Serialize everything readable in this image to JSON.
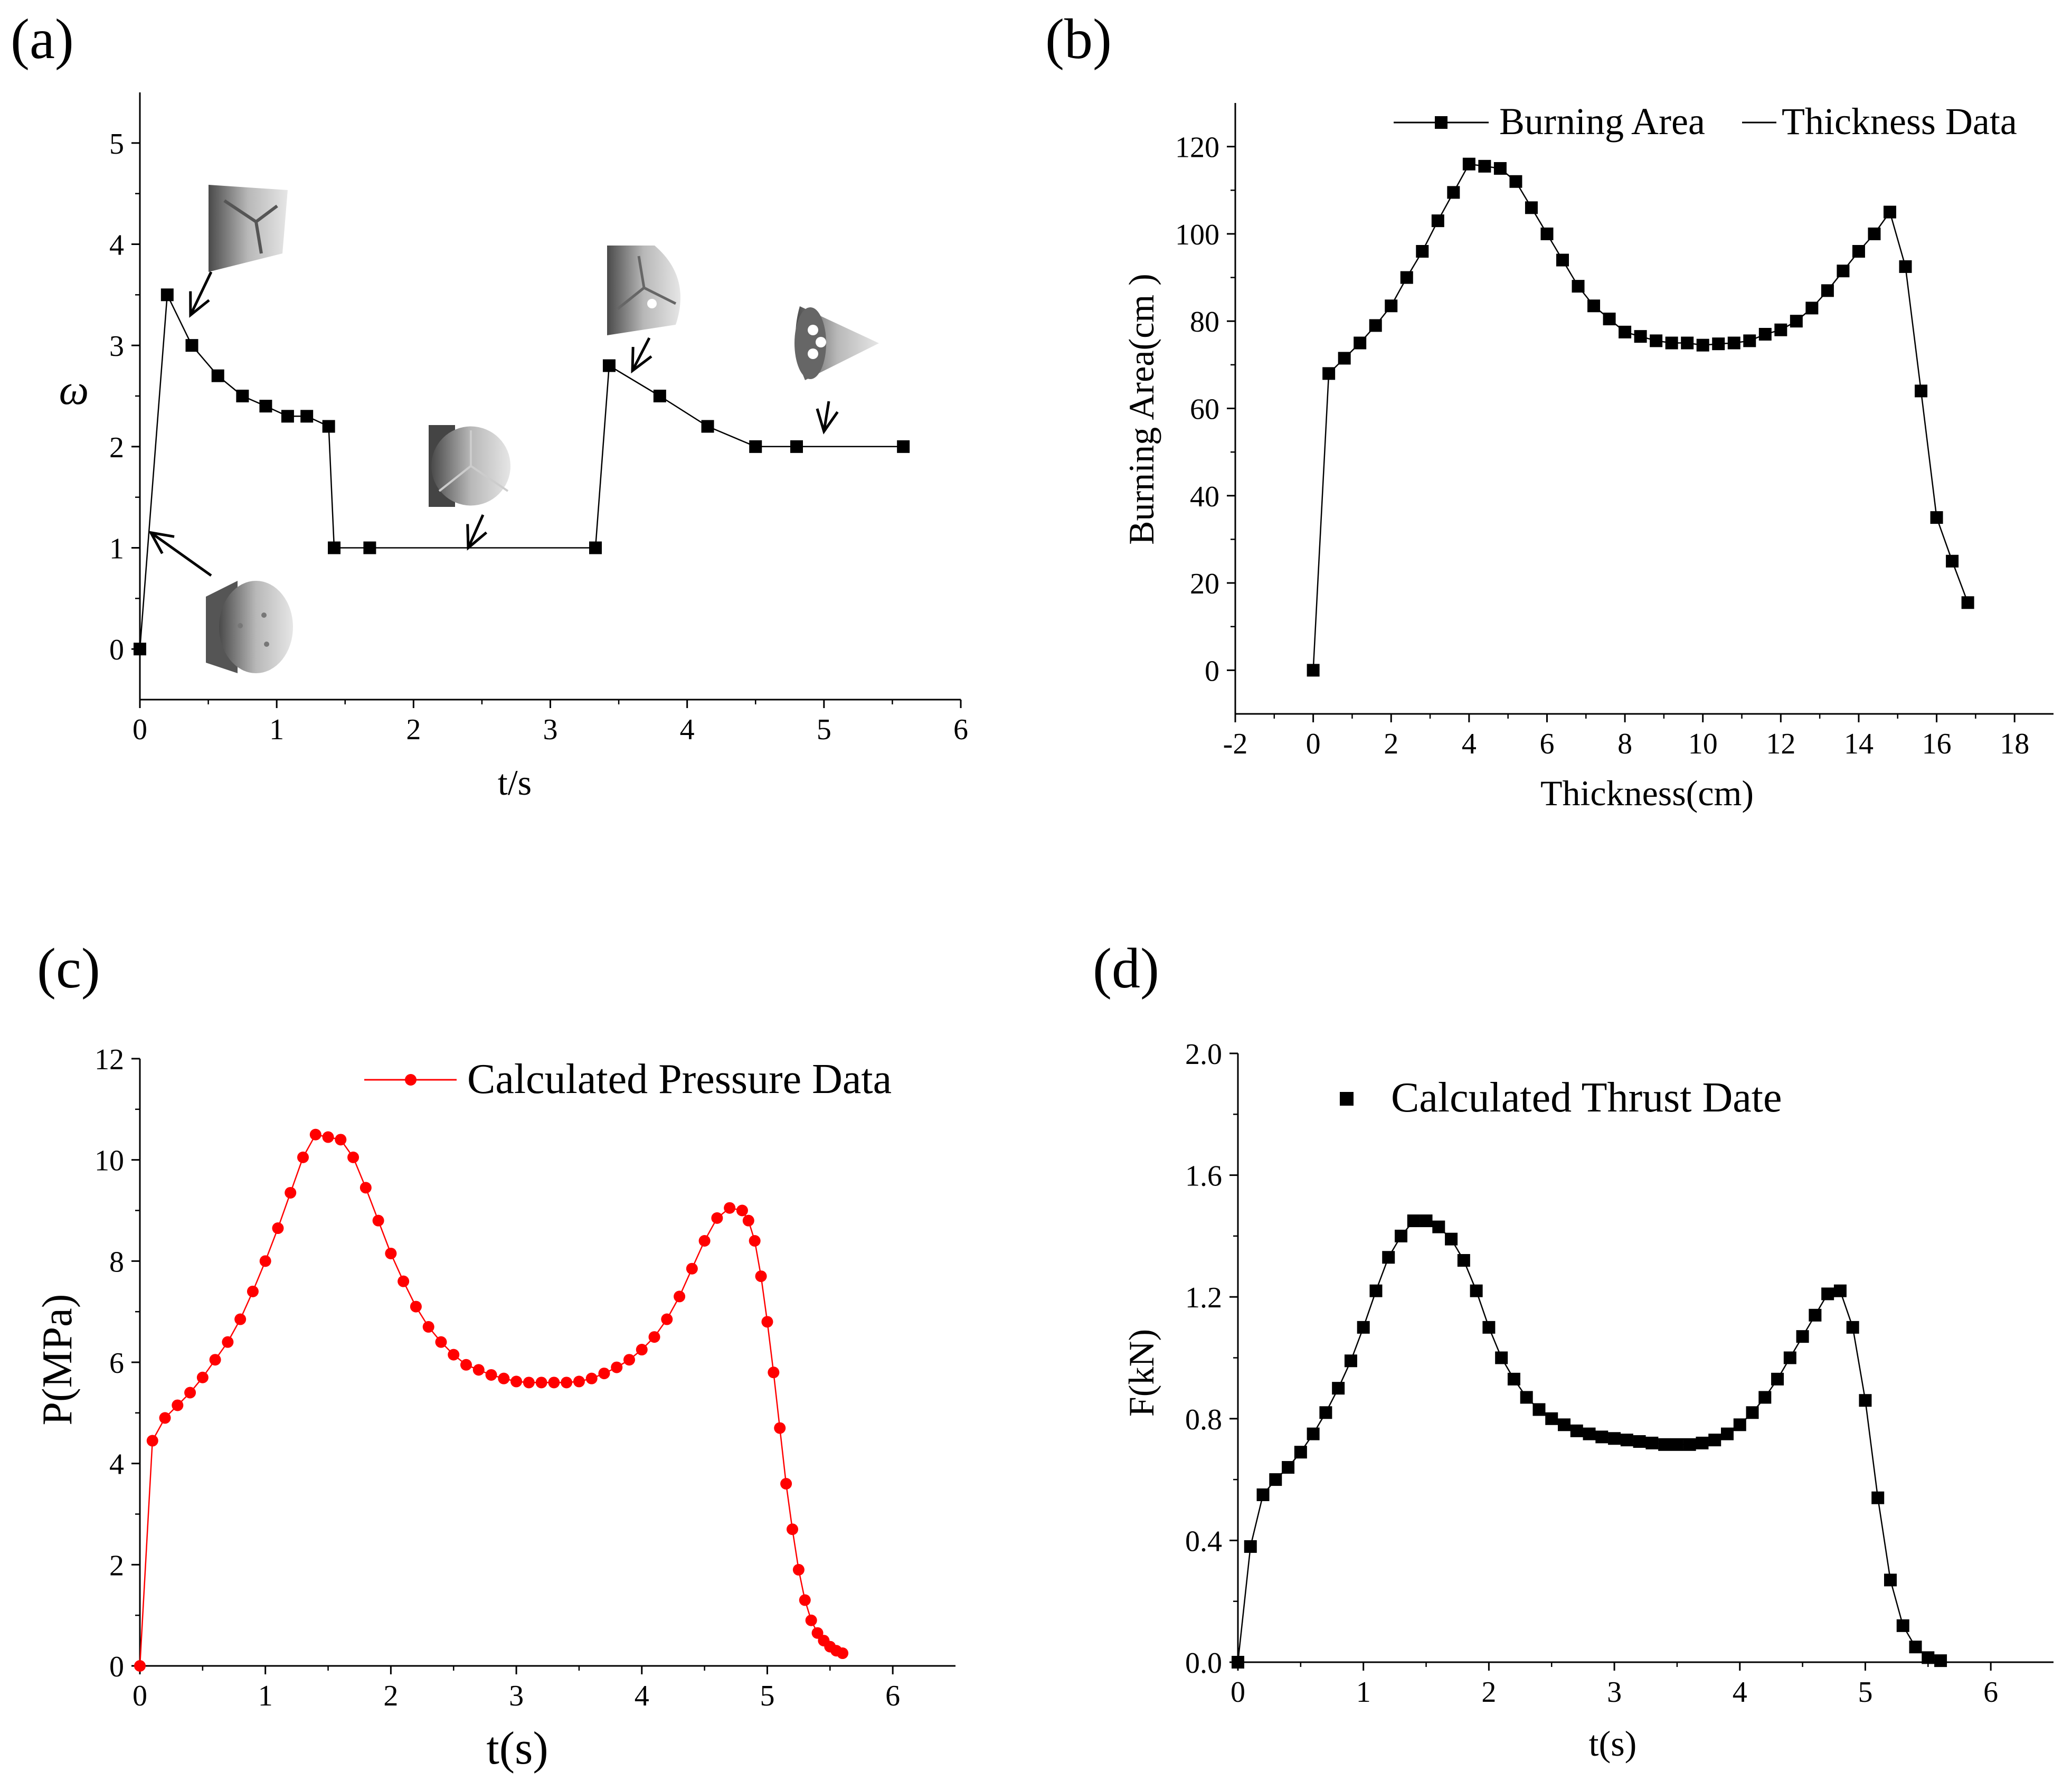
{
  "chart_data": [
    {
      "panel": "(a)",
      "type": "line",
      "xlabel": "t/s",
      "ylabel": "ω",
      "xlim": [
        0,
        6
      ],
      "ylim": [
        -0.5,
        5.5
      ],
      "xticks": [
        0,
        1,
        2,
        3,
        4,
        5,
        6
      ],
      "yticks": [
        0,
        1,
        2,
        3,
        4,
        5
      ],
      "marker": "square",
      "color": "#000000",
      "series": [
        {
          "name": "ω",
          "x": [
            0,
            0.2,
            0.38,
            0.57,
            0.75,
            0.92,
            1.08,
            1.22,
            1.38,
            1.42,
            1.68,
            3.33,
            3.43,
            3.8,
            4.15,
            4.5,
            4.8,
            5.58
          ],
          "y": [
            0,
            3.5,
            3.0,
            2.7,
            2.5,
            2.4,
            2.3,
            2.3,
            2.2,
            1.0,
            1.0,
            1.0,
            2.8,
            2.5,
            2.2,
            2.0,
            2.0,
            2.0
          ]
        }
      ],
      "annotations": [
        {
          "icon": "grain-shape-initial-icon",
          "target": [
            0.08,
            1.15
          ]
        },
        {
          "icon": "grain-shape-peak-icon",
          "target": [
            0.37,
            3.3
          ]
        },
        {
          "icon": "grain-shape-plateau-icon",
          "target": [
            2.4,
            1.0
          ]
        },
        {
          "icon": "grain-shape-second-peak-icon",
          "target": [
            3.6,
            2.75
          ]
        },
        {
          "icon": "grain-shape-final-icon",
          "target": [
            5.0,
            2.15
          ]
        }
      ]
    },
    {
      "panel": "(b)",
      "type": "line",
      "xlabel": "Thickness(cm)",
      "ylabel": "Burning Area(cm  )",
      "xlim": [
        -2,
        19
      ],
      "ylim": [
        -10,
        130
      ],
      "xticks": [
        -2,
        0,
        2,
        4,
        6,
        8,
        10,
        12,
        14,
        16,
        18
      ],
      "yticks": [
        0,
        20,
        40,
        60,
        80,
        100,
        120
      ],
      "marker": "square",
      "color": "#000000",
      "legend": {
        "entries": [
          "Burning Area",
          "Thickness Data"
        ],
        "position": "top-right"
      },
      "series": [
        {
          "name": "Burning Area",
          "x": [
            0,
            0.4,
            0.8,
            1.2,
            1.6,
            2.0,
            2.4,
            2.8,
            3.2,
            3.6,
            4.0,
            4.4,
            4.8,
            5.2,
            5.6,
            6.0,
            6.4,
            6.8,
            7.2,
            7.6,
            8.0,
            8.4,
            8.8,
            9.2,
            9.6,
            10.0,
            10.4,
            10.8,
            11.2,
            11.6,
            12.0,
            12.4,
            12.8,
            13.2,
            13.6,
            14.0,
            14.4,
            14.8,
            15.2,
            15.6,
            16.0,
            16.4,
            16.8
          ],
          "y": [
            0,
            68,
            71.5,
            75,
            79,
            83.5,
            90,
            96,
            103,
            109.5,
            116,
            115.5,
            115,
            112,
            106,
            100,
            94,
            88,
            83.5,
            80.5,
            77.5,
            76.5,
            75.5,
            75,
            75,
            74.5,
            74.8,
            75,
            75.5,
            77,
            78,
            80,
            83,
            87,
            91.5,
            96,
            100,
            105,
            92.5,
            64,
            35,
            25,
            15.5
          ]
        }
      ]
    },
    {
      "panel": "(c)",
      "type": "line",
      "xlabel": "t(s)",
      "ylabel": "P(MPa)",
      "xlim": [
        0,
        6.5
      ],
      "ylim": [
        0,
        12
      ],
      "xticks": [
        0,
        1,
        2,
        3,
        4,
        5,
        6
      ],
      "yticks": [
        0,
        2,
        4,
        6,
        8,
        10,
        12
      ],
      "marker": "circle",
      "color": "#ff0000",
      "legend": {
        "entries": [
          "Calculated Pressure Data"
        ],
        "position": "top-right"
      },
      "series": [
        {
          "name": "Calculated Pressure Data",
          "x": [
            0,
            0.1,
            0.2,
            0.3,
            0.4,
            0.5,
            0.6,
            0.7,
            0.8,
            0.9,
            1.0,
            1.1,
            1.2,
            1.3,
            1.4,
            1.5,
            1.6,
            1.7,
            1.8,
            1.9,
            2.0,
            2.1,
            2.2,
            2.3,
            2.4,
            2.5,
            2.6,
            2.7,
            2.8,
            2.9,
            3.0,
            3.1,
            3.2,
            3.3,
            3.4,
            3.5,
            3.6,
            3.7,
            3.8,
            3.9,
            4.0,
            4.1,
            4.2,
            4.3,
            4.4,
            4.5,
            4.6,
            4.7,
            4.8,
            4.85,
            4.9,
            4.95,
            5.0,
            5.05,
            5.1,
            5.15,
            5.2,
            5.25,
            5.3,
            5.35,
            5.4,
            5.45,
            5.5,
            5.55,
            5.6
          ],
          "y": [
            0,
            4.45,
            4.9,
            5.15,
            5.4,
            5.7,
            6.05,
            6.4,
            6.85,
            7.4,
            8.0,
            8.65,
            9.35,
            10.05,
            10.5,
            10.45,
            10.4,
            10.05,
            9.45,
            8.8,
            8.15,
            7.6,
            7.1,
            6.7,
            6.4,
            6.15,
            5.95,
            5.85,
            5.75,
            5.68,
            5.62,
            5.6,
            5.6,
            5.6,
            5.6,
            5.62,
            5.68,
            5.78,
            5.9,
            6.05,
            6.25,
            6.5,
            6.85,
            7.3,
            7.85,
            8.4,
            8.85,
            9.05,
            9.0,
            8.8,
            8.4,
            7.7,
            6.8,
            5.8,
            4.7,
            3.6,
            2.7,
            1.9,
            1.3,
            0.9,
            0.65,
            0.5,
            0.38,
            0.3,
            0.25
          ]
        }
      ]
    },
    {
      "panel": "(d)",
      "type": "line",
      "xlabel": "t(s)",
      "ylabel": "F(kN)",
      "xlim": [
        0,
        6.5
      ],
      "ylim": [
        0,
        2.0
      ],
      "xticks": [
        0,
        1,
        2,
        3,
        4,
        5,
        6
      ],
      "yticks": [
        0.0,
        0.4,
        0.8,
        1.2,
        1.6,
        2.0
      ],
      "ytick_labels": [
        "0.0",
        "0.4",
        "0.8",
        "1.2",
        "1.6",
        "2.0"
      ],
      "marker": "square",
      "color": "#000000",
      "legend": {
        "entries": [
          "Calculated Thrust Date"
        ],
        "position": "top-center"
      },
      "series": [
        {
          "name": "Calculated Thrust Date",
          "x": [
            0,
            0.1,
            0.2,
            0.3,
            0.4,
            0.5,
            0.6,
            0.7,
            0.8,
            0.9,
            1.0,
            1.1,
            1.2,
            1.3,
            1.4,
            1.5,
            1.6,
            1.7,
            1.8,
            1.9,
            2.0,
            2.1,
            2.2,
            2.3,
            2.4,
            2.5,
            2.6,
            2.7,
            2.8,
            2.9,
            3.0,
            3.1,
            3.2,
            3.3,
            3.4,
            3.5,
            3.6,
            3.7,
            3.8,
            3.9,
            4.0,
            4.1,
            4.2,
            4.3,
            4.4,
            4.5,
            4.6,
            4.7,
            4.8,
            4.9,
            5.0,
            5.1,
            5.2,
            5.3,
            5.4,
            5.5,
            5.6
          ],
          "y": [
            0,
            0.38,
            0.55,
            0.6,
            0.64,
            0.69,
            0.75,
            0.82,
            0.9,
            0.99,
            1.1,
            1.22,
            1.33,
            1.4,
            1.45,
            1.45,
            1.43,
            1.39,
            1.32,
            1.22,
            1.1,
            1.0,
            0.93,
            0.87,
            0.83,
            0.8,
            0.78,
            0.76,
            0.75,
            0.74,
            0.735,
            0.73,
            0.725,
            0.72,
            0.715,
            0.715,
            0.715,
            0.72,
            0.73,
            0.75,
            0.78,
            0.82,
            0.87,
            0.93,
            1.0,
            1.07,
            1.14,
            1.21,
            1.22,
            1.1,
            0.86,
            0.54,
            0.27,
            0.12,
            0.05,
            0.015,
            0.005
          ]
        }
      ]
    }
  ]
}
